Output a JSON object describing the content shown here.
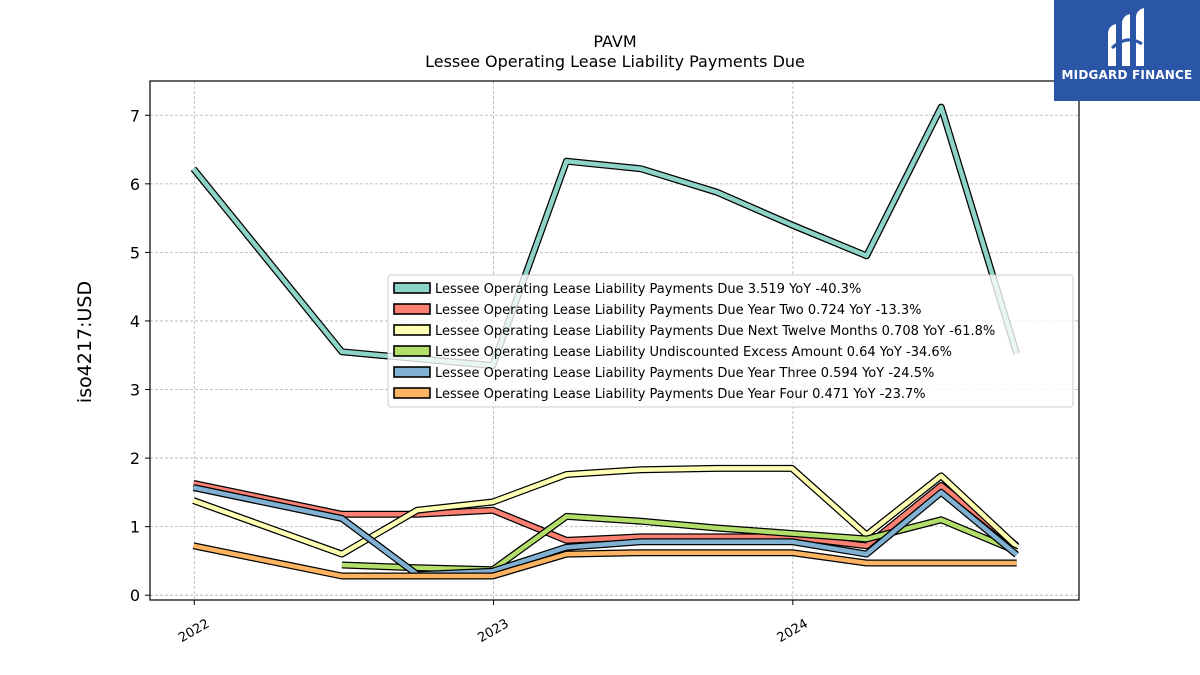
{
  "logo": {
    "text": "MIDGARD FINANCE",
    "icon": "midgard-logo-icon",
    "color": "#2b56a8"
  },
  "chart_data": {
    "type": "line",
    "title": "PAVM",
    "subtitle": "Lessee Operating Lease Liability Payments Due",
    "ylabel": "iso4217:USD",
    "xlabel": "",
    "x_ticks": [
      "2022",
      "2023",
      "2024"
    ],
    "y_ticks": [
      0,
      1,
      2,
      3,
      4,
      5,
      6,
      7
    ],
    "xlim": [
      "2021-11-08",
      "2024-12-15"
    ],
    "ylim": [
      -0.07,
      7.5
    ],
    "grid": true,
    "legend_position": "center-right",
    "series": [
      {
        "name": "Lessee Operating Lease Liability Payments Due",
        "legend": "Lessee Operating Lease Liability Payments Due  3.519 YoY -40.3%",
        "color": "#8dd3c7",
        "points": [
          [
            "2021-12-31",
            6.22
          ],
          [
            "2022-06-30",
            3.55
          ],
          [
            "2022-09-30",
            3.45
          ],
          [
            "2022-12-31",
            3.35
          ],
          [
            "2023-03-31",
            6.33
          ],
          [
            "2023-06-30",
            6.22
          ],
          [
            "2023-09-30",
            5.88
          ],
          [
            "2023-12-31",
            5.4
          ],
          [
            "2024-03-31",
            4.95
          ],
          [
            "2024-06-30",
            7.12
          ],
          [
            "2024-09-30",
            3.52
          ]
        ]
      },
      {
        "name": "Lessee Operating Lease Liability Payments Due Year Two",
        "legend": "Lessee Operating Lease Liability Payments Due Year Two  0.724 YoY -13.3%",
        "color": "#fb8072",
        "points": [
          [
            "2021-12-31",
            1.63
          ],
          [
            "2022-06-30",
            1.18
          ],
          [
            "2022-09-30",
            1.18
          ],
          [
            "2022-12-31",
            1.24
          ],
          [
            "2023-03-31",
            0.8
          ],
          [
            "2023-06-30",
            0.85
          ],
          [
            "2023-09-30",
            0.85
          ],
          [
            "2023-12-31",
            0.85
          ],
          [
            "2024-03-31",
            0.72
          ],
          [
            "2024-06-30",
            1.6
          ],
          [
            "2024-09-30",
            0.72
          ]
        ]
      },
      {
        "name": "Lessee Operating Lease Liability Payments Due Next Twelve Months",
        "legend": "Lessee Operating Lease Liability Payments Due Next Twelve Months  0.708 YoY -61.8%",
        "color": "#ffffb3",
        "points": [
          [
            "2021-12-31",
            1.38
          ],
          [
            "2022-06-30",
            0.6
          ],
          [
            "2022-09-30",
            1.24
          ],
          [
            "2022-12-31",
            1.36
          ],
          [
            "2023-03-31",
            1.76
          ],
          [
            "2023-06-30",
            1.83
          ],
          [
            "2023-09-30",
            1.85
          ],
          [
            "2023-12-31",
            1.85
          ],
          [
            "2024-03-31",
            0.88
          ],
          [
            "2024-06-30",
            1.74
          ],
          [
            "2024-09-30",
            0.71
          ]
        ]
      },
      {
        "name": "Lessee Operating Lease Liability Undiscounted Excess Amount",
        "legend": "Lessee Operating Lease Liability Undiscounted Excess Amount  0.64 YoY -34.6%",
        "color": "#b3de69",
        "points": [
          [
            "2022-06-30",
            0.44
          ],
          [
            "2022-09-30",
            0.4
          ],
          [
            "2022-12-31",
            0.37
          ],
          [
            "2023-03-31",
            1.15
          ],
          [
            "2023-06-30",
            1.08
          ],
          [
            "2023-09-30",
            0.98
          ],
          [
            "2023-12-31",
            0.9
          ],
          [
            "2024-03-31",
            0.82
          ],
          [
            "2024-06-30",
            1.1
          ],
          [
            "2024-09-30",
            0.64
          ]
        ]
      },
      {
        "name": "Lessee Operating Lease Liability Payments Due Year Three",
        "legend": "Lessee Operating Lease Liability Payments Due Year Three  0.594 YoY -24.5%",
        "color": "#80b1d3",
        "points": [
          [
            "2021-12-31",
            1.57
          ],
          [
            "2022-06-30",
            1.12
          ],
          [
            "2022-09-30",
            0.3
          ],
          [
            "2022-12-31",
            0.35
          ],
          [
            "2023-03-31",
            0.7
          ],
          [
            "2023-06-30",
            0.78
          ],
          [
            "2023-09-30",
            0.78
          ],
          [
            "2023-12-31",
            0.78
          ],
          [
            "2024-03-31",
            0.6
          ],
          [
            "2024-06-30",
            1.5
          ],
          [
            "2024-09-30",
            0.59
          ]
        ]
      },
      {
        "name": "Lessee Operating Lease Liability Payments Due Year Four",
        "legend": "Lessee Operating Lease Liability Payments Due Year Four  0.471 YoY -23.7%",
        "color": "#fdb462",
        "points": [
          [
            "2021-12-31",
            0.72
          ],
          [
            "2022-06-30",
            0.28
          ],
          [
            "2022-09-30",
            0.28
          ],
          [
            "2022-12-31",
            0.28
          ],
          [
            "2023-03-31",
            0.6
          ],
          [
            "2023-06-30",
            0.62
          ],
          [
            "2023-09-30",
            0.62
          ],
          [
            "2023-12-31",
            0.62
          ],
          [
            "2024-03-31",
            0.47
          ],
          [
            "2024-06-30",
            0.47
          ],
          [
            "2024-09-30",
            0.47
          ]
        ]
      }
    ]
  }
}
